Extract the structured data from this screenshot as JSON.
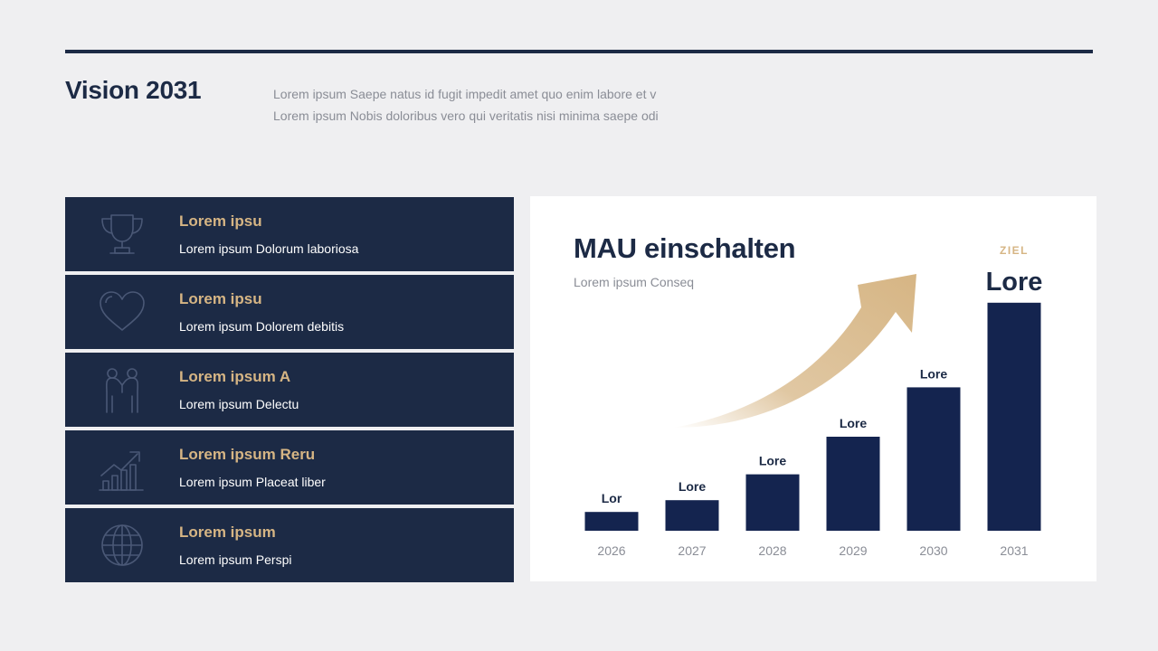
{
  "header": {
    "title": "Vision 2031",
    "intro_lines": [
      "Lorem ipsum Saepe natus id fugit impedit amet quo enim labore et v",
      "Lorem ipsum Nobis doloribus vero qui veritatis nisi minima saepe odi"
    ]
  },
  "features": [
    {
      "icon": "trophy-icon",
      "title": "Lorem ipsu",
      "text": "Lorem ipsum Dolorum laboriosa"
    },
    {
      "icon": "heart-icon",
      "title": "Lorem ipsu",
      "text": "Lorem ipsum Dolorem debitis"
    },
    {
      "icon": "high-five-icon",
      "title": "Lorem ipsum A",
      "text": "Lorem ipsum Delectu"
    },
    {
      "icon": "growth-chart-icon",
      "title": "Lorem ipsum Reru",
      "text": "Lorem ipsum Placeat liber"
    },
    {
      "icon": "globe-icon",
      "title": "Lorem ipsum",
      "text": "Lorem ipsum Perspi"
    }
  ],
  "colors": {
    "navy": "#1c2a45",
    "bar": "#14244f",
    "gold": "#d6b584",
    "muted": "#8a8d96",
    "background": "#efeff1"
  },
  "chart_data": {
    "type": "bar",
    "title": "MAU einschalten",
    "subtitle": "Lorem ipsum Conseq",
    "categories": [
      "2026",
      "2027",
      "2028",
      "2029",
      "2030",
      "2031"
    ],
    "values": [
      8,
      13,
      24,
      40,
      61,
      97
    ],
    "data_labels": [
      "Lor",
      "Lore",
      "Lore",
      "Lore",
      "Lore",
      "Lore"
    ],
    "highlight": {
      "category": "2031",
      "tag": "ZIEL"
    },
    "ylim": [
      0,
      100
    ],
    "grid": false,
    "trend_arrow": true
  }
}
